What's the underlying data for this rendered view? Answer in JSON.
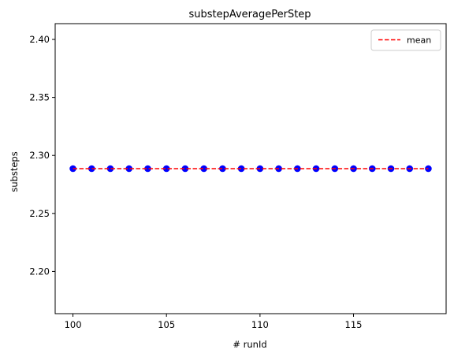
{
  "chart_data": {
    "type": "scatter",
    "title": "substepAveragePerStep",
    "xlabel": "# runId",
    "ylabel": "substeps",
    "xlim": [
      99.05,
      119.95
    ],
    "ylim": [
      2.1636,
      2.4136
    ],
    "xticks": [
      100,
      105,
      110,
      115
    ],
    "xtick_labels": [
      "100",
      "105",
      "110",
      "115"
    ],
    "yticks": [
      2.2,
      2.25,
      2.3,
      2.35,
      2.4
    ],
    "ytick_labels": [
      "2.20",
      "2.25",
      "2.30",
      "2.35",
      "2.40"
    ],
    "grid": false,
    "legend": {
      "location": "top-right",
      "entries": [
        "mean"
      ]
    },
    "series": [
      {
        "style": "scatter",
        "color": "#0000ff",
        "x": [
          100,
          101,
          102,
          103,
          104,
          105,
          106,
          107,
          108,
          109,
          110,
          111,
          112,
          113,
          114,
          115,
          116,
          117,
          118,
          119
        ],
        "y": [
          2.2886,
          2.2886,
          2.2886,
          2.2886,
          2.2886,
          2.2886,
          2.2886,
          2.2886,
          2.2886,
          2.2886,
          2.2886,
          2.2886,
          2.2886,
          2.2886,
          2.2886,
          2.2886,
          2.2886,
          2.2886,
          2.2886,
          2.2886
        ]
      },
      {
        "name": "mean",
        "style": "dashed-line",
        "color": "#ff0000",
        "x": [
          100,
          119
        ],
        "y": [
          2.2886,
          2.2886
        ]
      }
    ]
  }
}
